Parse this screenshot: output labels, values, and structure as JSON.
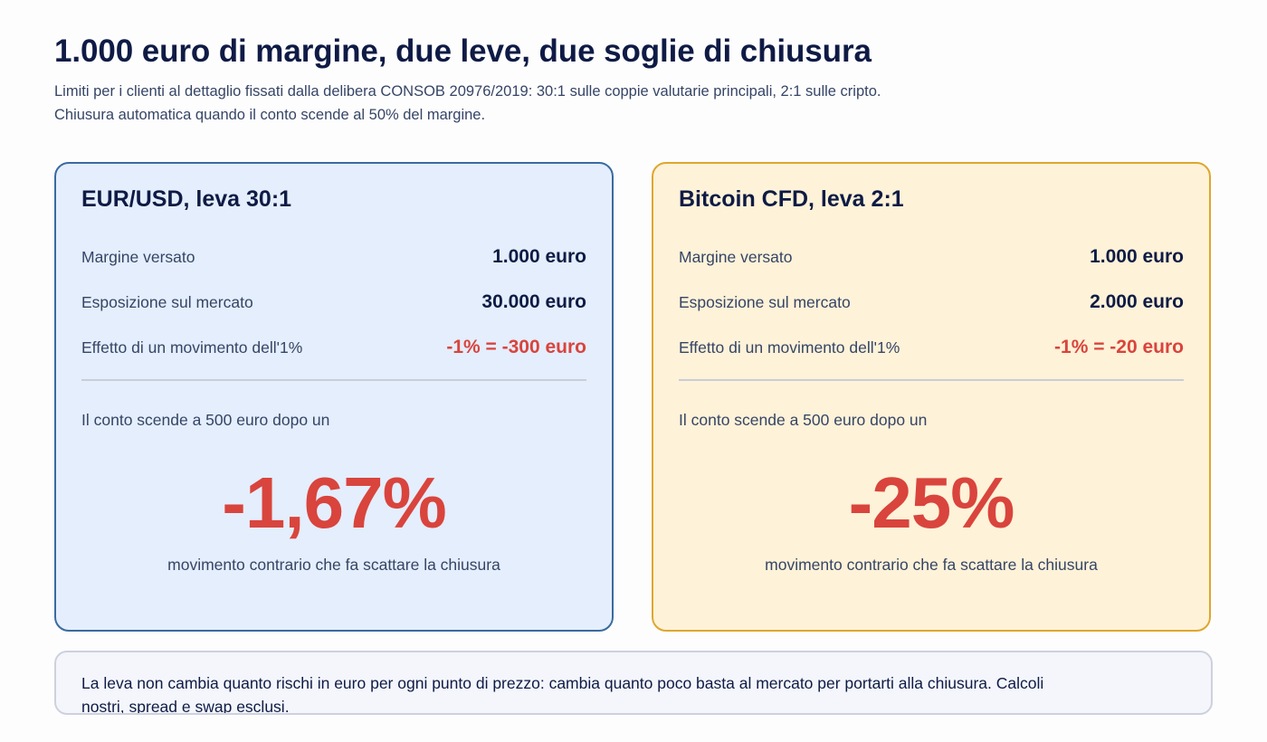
{
  "header": {
    "title": "1.000 euro di margine, due leve, due soglie di chiusura",
    "subtitle": "Limiti per i clienti al dettaglio fissati dalla delibera CONSOB 20976/2019: 30:1 sulle coppie valutarie principali, 2:1 sulle cripto. Chiusura automatica quando il conto scende al 50% del margine."
  },
  "cards": [
    {
      "title": "EUR/USD, leva 30:1",
      "rows": [
        {
          "label": "Margine versato",
          "value": "1.000 euro"
        },
        {
          "label": "Esposizione sul mercato",
          "value": "30.000 euro"
        },
        {
          "label": "Effetto di un movimento dell'1%",
          "value": "-1% = -300 euro"
        }
      ],
      "threshold_text": "Il conto scende a 500 euro dopo un",
      "threshold_value": "-1,67%",
      "caption": "movimento contrario che fa scattare la chiusura"
    },
    {
      "title": "Bitcoin CFD, leva 2:1",
      "rows": [
        {
          "label": "Margine versato",
          "value": "1.000 euro"
        },
        {
          "label": "Esposizione sul mercato",
          "value": "2.000 euro"
        },
        {
          "label": "Effetto di un movimento dell'1%",
          "value": "-1% = -20 euro"
        }
      ],
      "threshold_text": "Il conto scende a 500 euro dopo un",
      "threshold_value": "-25%",
      "caption": "movimento contrario che fa scattare la chiusura"
    }
  ],
  "note": "La leva non cambia quanto rischi in euro per ogni punto di prezzo: cambia quanto poco basta al mercato per portarti alla chiusura. Calcoli nostri, spread e swap esclusi.",
  "colors": {
    "navy": "#0f1b45",
    "negative_red": "#d9443d",
    "blue_card_bg": "#e4eefc",
    "blue_card_border": "#3a6aa0",
    "amber_card_bg": "#fef2d8",
    "amber_card_border": "#dea72d"
  }
}
